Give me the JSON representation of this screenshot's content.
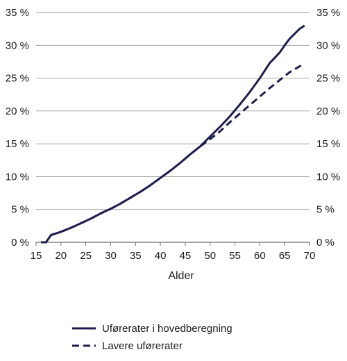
{
  "chart_data": {
    "type": "line",
    "title": "",
    "xlabel": "Alder",
    "ylabel": "",
    "xlim": [
      15,
      70
    ],
    "ylim": [
      0,
      35
    ],
    "x_ticks": [
      15,
      20,
      25,
      30,
      35,
      40,
      45,
      50,
      55,
      60,
      65,
      70
    ],
    "y_ticks": [
      0,
      5,
      10,
      15,
      20,
      25,
      30,
      35
    ],
    "y_tick_labels": [
      "0 %",
      "5 %",
      "10 %",
      "15 %",
      "20 %",
      "25 %",
      "30 %",
      "35 %"
    ],
    "y_axis_sides": "both",
    "grid": "horizontal",
    "legend_position": "bottom",
    "series_color": "#1f1d4f",
    "series": [
      {
        "name": "Uførerater i hovedberegning",
        "style": "solid",
        "x": [
          16,
          17,
          18,
          20,
          22,
          24,
          26,
          28,
          30,
          32,
          34,
          36,
          38,
          40,
          42,
          44,
          46,
          48,
          50,
          52,
          54,
          56,
          58,
          60,
          62,
          64,
          65,
          66,
          68,
          69
        ],
        "y": [
          0,
          0,
          1.1,
          1.6,
          2.2,
          2.9,
          3.6,
          4.4,
          5.1,
          5.9,
          6.8,
          7.7,
          8.7,
          9.8,
          10.9,
          12.1,
          13.4,
          14.6,
          16.1,
          17.6,
          19.2,
          21.0,
          22.9,
          25.0,
          27.3,
          28.9,
          30.0,
          31.0,
          32.5,
          33.0
        ]
      },
      {
        "name": "Lavere uførerater",
        "style": "dashed",
        "x": [
          16,
          17,
          18,
          20,
          22,
          24,
          26,
          28,
          30,
          32,
          34,
          36,
          38,
          40,
          42,
          44,
          46,
          48,
          50,
          52,
          54,
          56,
          58,
          60,
          62,
          64,
          66,
          68,
          69
        ],
        "y": [
          0,
          0,
          1.1,
          1.6,
          2.2,
          2.9,
          3.6,
          4.4,
          5.1,
          5.9,
          6.8,
          7.7,
          8.7,
          9.8,
          10.9,
          12.1,
          13.4,
          14.6,
          15.7,
          16.9,
          18.3,
          19.6,
          20.9,
          22.2,
          23.5,
          24.7,
          25.9,
          26.8,
          27.2
        ]
      }
    ]
  }
}
